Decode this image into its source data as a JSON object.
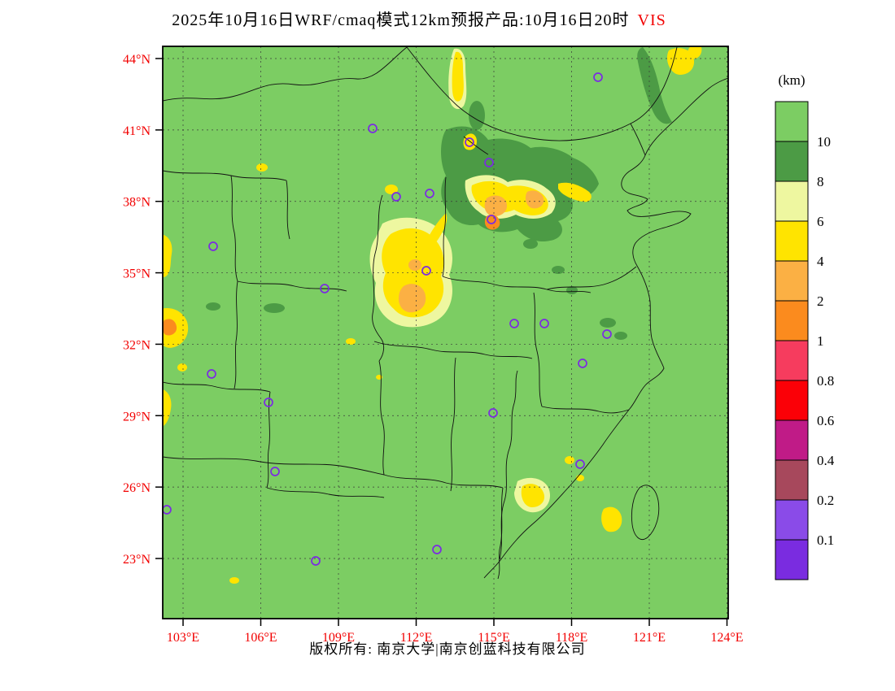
{
  "title": {
    "main": "2025年10月16日WRF/cmaq模式12km预报产品:10月16日20时",
    "highlight": "VIS",
    "highlight_color": "#f20000"
  },
  "colorbar": {
    "unit_label": "(km)",
    "tick_labels": [
      "10",
      "8",
      "6",
      "4",
      "2",
      "1",
      "0.8",
      "0.6",
      "0.4",
      "0.2",
      "0.1"
    ],
    "colors": [
      "#7ccd63",
      "#4c9b45",
      "#eef7a0",
      "#ffe400",
      "#fbb044",
      "#fb8b1e",
      "#f63c5e",
      "#fb0007",
      "#c01b87",
      "#a7485c",
      "#8a4be8",
      "#7a2ce0"
    ]
  },
  "axes": {
    "lat_labels": [
      "44°N",
      "41°N",
      "38°N",
      "35°N",
      "32°N",
      "29°N",
      "26°N",
      "23°N"
    ],
    "lon_labels": [
      "103°E",
      "106°E",
      "109°E",
      "112°E",
      "115°E",
      "118°E",
      "121°E",
      "124°E"
    ],
    "label_color": "#f20000"
  },
  "map": {
    "marker_color": "#7b2be2",
    "city_markers": [
      [
        735,
        95
      ],
      [
        458,
        158
      ],
      [
        577,
        175
      ],
      [
        601,
        200
      ],
      [
        487,
        242
      ],
      [
        528,
        238
      ],
      [
        604,
        270
      ],
      [
        262,
        303
      ],
      [
        524,
        333
      ],
      [
        399,
        355
      ],
      [
        632,
        398
      ],
      [
        669,
        398
      ],
      [
        746,
        411
      ],
      [
        716,
        447
      ],
      [
        260,
        460
      ],
      [
        330,
        495
      ],
      [
        606,
        508
      ],
      [
        713,
        571
      ],
      [
        338,
        580
      ],
      [
        205,
        627
      ],
      [
        388,
        690
      ],
      [
        537,
        676
      ]
    ]
  },
  "footer": {
    "copyright": "版权所有: 南京大学|南京创蓝科技有限公司"
  }
}
